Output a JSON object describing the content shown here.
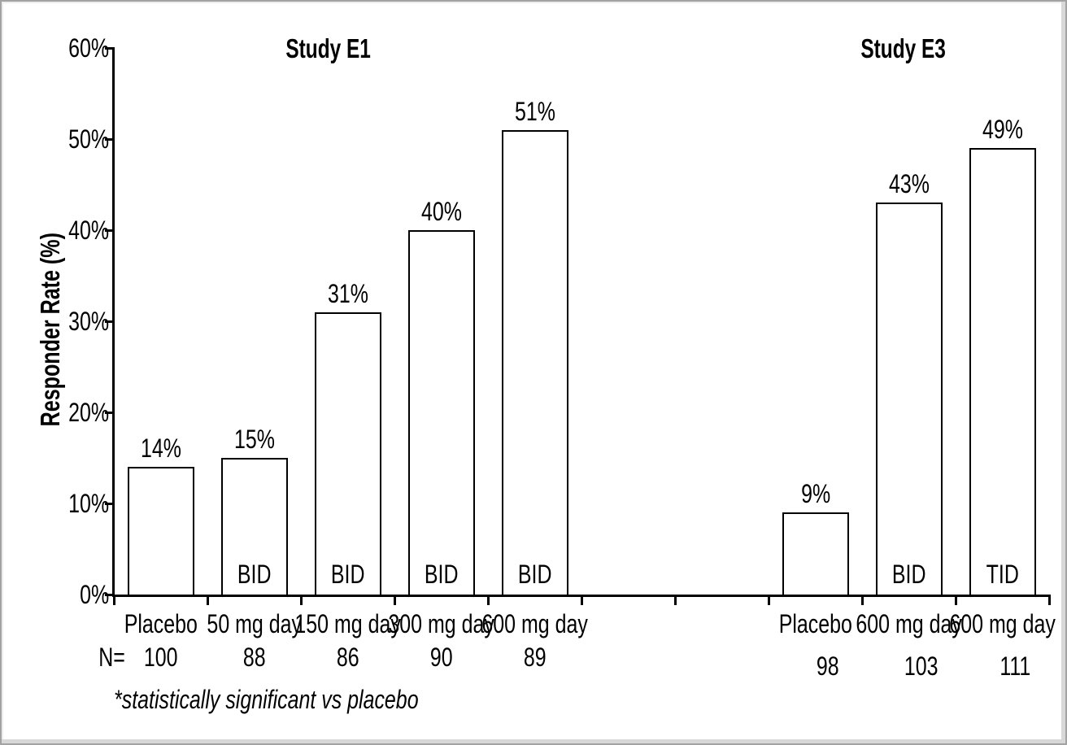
{
  "chart_data": {
    "type": "bar",
    "ylabel": "Responder Rate (%)",
    "ylim": [
      0,
      60
    ],
    "y_tick_labels": [
      "60%",
      "50%",
      "40%",
      "30%",
      "20%",
      "10%",
      "0%"
    ],
    "grid": "off",
    "legend": "none",
    "bar_fill": "#ffffff",
    "bar_stroke": "#000000",
    "text_color": "#000000",
    "n_prefix": "N=",
    "footnote": "*statistically significant vs placebo",
    "groups": [
      {
        "title": "Study E1",
        "bars": [
          {
            "category": "Placebo",
            "value": 14,
            "value_label": "14%",
            "regimen": "",
            "n": "100"
          },
          {
            "category": "50 mg day",
            "value": 15,
            "value_label": "15%",
            "regimen": "BID",
            "n": "88"
          },
          {
            "category": "150 mg day",
            "value": 31,
            "value_label": "31%",
            "regimen": "BID",
            "n": "86"
          },
          {
            "category": "300 mg day",
            "value": 40,
            "value_label": "40%",
            "regimen": "BID",
            "n": "90"
          },
          {
            "category": "600 mg day",
            "value": 51,
            "value_label": "51%",
            "regimen": "BID",
            "n": "89"
          }
        ]
      },
      {
        "title": "Study E3",
        "bars": [
          {
            "category": "Placebo",
            "value": 9,
            "value_label": "9%",
            "regimen": "",
            "n": "98"
          },
          {
            "category": "600 mg day",
            "value": 43,
            "value_label": "43%",
            "regimen": "BID",
            "n": "103"
          },
          {
            "category": "600 mg day",
            "value": 49,
            "value_label": "49%",
            "regimen": "TID",
            "n": "111"
          }
        ]
      }
    ]
  }
}
